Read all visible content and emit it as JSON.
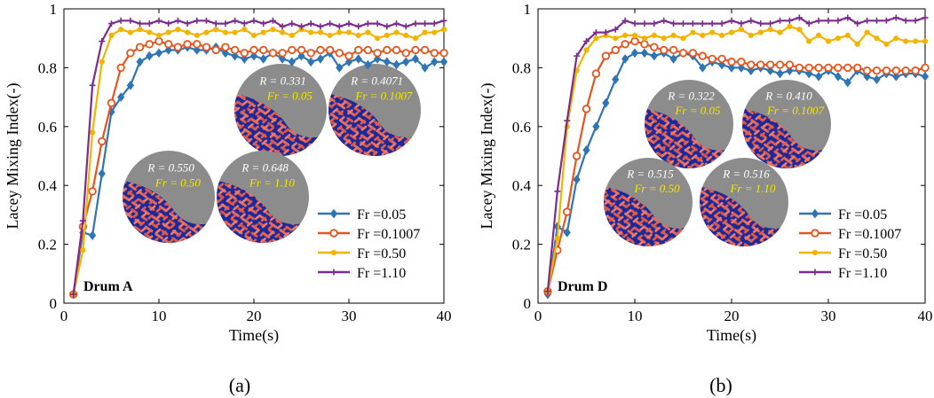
{
  "figure": {
    "panel_labels": [
      "(a)",
      "(b)"
    ]
  },
  "chart_data": [
    {
      "type": "line",
      "panel_label": "(a)",
      "annotation": "Drum A",
      "xlabel": "Time(s)",
      "ylabel": "Lacey Mixing Index(-)",
      "xlim": [
        0,
        40
      ],
      "ylim": [
        0,
        1
      ],
      "xticks": [
        0,
        10,
        20,
        30,
        40
      ],
      "yticks": [
        0,
        0.2,
        0.4,
        0.6,
        0.8,
        1
      ],
      "ytick_labels": [
        "0",
        "0.2",
        "0.4",
        "0.6",
        "0.8",
        "1"
      ],
      "legend_position": "bottom-right",
      "series": [
        {
          "name": "Fr =0.05",
          "color": "#2f75b6",
          "marker": "diamond",
          "x": [
            1,
            2,
            3,
            4,
            5,
            6,
            7,
            8,
            9,
            10,
            11,
            12,
            13,
            14,
            15,
            16,
            17,
            18,
            19,
            20,
            21,
            22,
            23,
            24,
            25,
            26,
            27,
            28,
            29,
            30,
            31,
            32,
            33,
            34,
            35,
            36,
            37,
            38,
            39,
            40
          ],
          "values": [
            0.03,
            0.24,
            0.23,
            0.44,
            0.65,
            0.7,
            0.74,
            0.82,
            0.84,
            0.85,
            0.86,
            0.86,
            0.87,
            0.86,
            0.86,
            0.87,
            0.85,
            0.84,
            0.83,
            0.84,
            0.83,
            0.85,
            0.83,
            0.82,
            0.84,
            0.82,
            0.83,
            0.85,
            0.8,
            0.82,
            0.83,
            0.81,
            0.83,
            0.82,
            0.81,
            0.82,
            0.83,
            0.8,
            0.82,
            0.82
          ]
        },
        {
          "name": "Fr =0.1007",
          "color": "#e8541c",
          "marker": "circle",
          "x": [
            1,
            2,
            3,
            4,
            5,
            6,
            7,
            8,
            9,
            10,
            11,
            12,
            13,
            14,
            15,
            16,
            17,
            18,
            19,
            20,
            21,
            22,
            23,
            24,
            25,
            26,
            27,
            28,
            29,
            30,
            31,
            32,
            33,
            34,
            35,
            36,
            37,
            38,
            39,
            40
          ],
          "values": [
            0.03,
            0.26,
            0.38,
            0.55,
            0.68,
            0.8,
            0.85,
            0.87,
            0.88,
            0.89,
            0.88,
            0.87,
            0.88,
            0.88,
            0.87,
            0.86,
            0.87,
            0.86,
            0.85,
            0.86,
            0.86,
            0.85,
            0.85,
            0.86,
            0.86,
            0.85,
            0.86,
            0.86,
            0.85,
            0.84,
            0.86,
            0.86,
            0.85,
            0.86,
            0.86,
            0.85,
            0.86,
            0.86,
            0.85,
            0.85
          ]
        },
        {
          "name": "Fr =0.50",
          "color": "#f2b400",
          "marker": "circle-small",
          "x": [
            1,
            2,
            3,
            4,
            5,
            6,
            7,
            8,
            9,
            10,
            11,
            12,
            13,
            14,
            15,
            16,
            17,
            18,
            19,
            20,
            21,
            22,
            23,
            24,
            25,
            26,
            27,
            28,
            29,
            30,
            31,
            32,
            33,
            34,
            35,
            36,
            37,
            38,
            39,
            40
          ],
          "values": [
            0.03,
            0.18,
            0.58,
            0.82,
            0.91,
            0.93,
            0.92,
            0.93,
            0.92,
            0.91,
            0.92,
            0.93,
            0.92,
            0.91,
            0.92,
            0.93,
            0.92,
            0.92,
            0.93,
            0.91,
            0.92,
            0.93,
            0.92,
            0.91,
            0.93,
            0.92,
            0.92,
            0.91,
            0.92,
            0.92,
            0.91,
            0.92,
            0.9,
            0.91,
            0.92,
            0.91,
            0.9,
            0.92,
            0.92,
            0.93
          ]
        },
        {
          "name": "Fr =1.10",
          "color": "#7b2d8e",
          "marker": "plus",
          "x": [
            1,
            2,
            3,
            4,
            5,
            6,
            7,
            8,
            9,
            10,
            11,
            12,
            13,
            14,
            15,
            16,
            17,
            18,
            19,
            20,
            21,
            22,
            23,
            24,
            25,
            26,
            27,
            28,
            29,
            30,
            31,
            32,
            33,
            34,
            35,
            36,
            37,
            38,
            39,
            40
          ],
          "values": [
            0.03,
            0.28,
            0.74,
            0.89,
            0.95,
            0.96,
            0.96,
            0.95,
            0.95,
            0.96,
            0.95,
            0.96,
            0.95,
            0.96,
            0.96,
            0.95,
            0.95,
            0.96,
            0.95,
            0.96,
            0.95,
            0.96,
            0.94,
            0.95,
            0.94,
            0.95,
            0.94,
            0.95,
            0.94,
            0.95,
            0.94,
            0.95,
            0.95,
            0.94,
            0.95,
            0.94,
            0.95,
            0.95,
            0.95,
            0.96
          ]
        }
      ],
      "insets": [
        {
          "r_label": "R = 0.331",
          "fr_label": "Fr = 0.05"
        },
        {
          "r_label": "R = 0.4071",
          "fr_label": "Fr = 0.1007"
        },
        {
          "r_label": "R = 0.550",
          "fr_label": "Fr = 0.50"
        },
        {
          "r_label": "R = 0.648",
          "fr_label": "Fr = 1.10"
        }
      ]
    },
    {
      "type": "line",
      "panel_label": "(b)",
      "annotation": "Drum D",
      "xlabel": "Time(s)",
      "ylabel": "Lacey Mixing Index(-)",
      "xlim": [
        0,
        40
      ],
      "ylim": [
        0,
        1
      ],
      "xticks": [
        0,
        10,
        20,
        30,
        40
      ],
      "yticks": [
        0,
        0.2,
        0.4,
        0.6,
        0.8,
        1
      ],
      "ytick_labels": [
        "0",
        "0.2",
        "0.4",
        "0.6",
        "0.8",
        "1"
      ],
      "legend_position": "bottom-right",
      "series": [
        {
          "name": "Fr =0.05",
          "color": "#2f75b6",
          "marker": "diamond",
          "x": [
            1,
            2,
            3,
            4,
            5,
            6,
            7,
            8,
            9,
            10,
            11,
            12,
            13,
            14,
            15,
            16,
            17,
            18,
            19,
            20,
            21,
            22,
            23,
            24,
            25,
            26,
            27,
            28,
            29,
            30,
            31,
            32,
            33,
            34,
            35,
            36,
            37,
            38,
            39,
            40
          ],
          "values": [
            0.03,
            0.26,
            0.24,
            0.42,
            0.52,
            0.6,
            0.68,
            0.76,
            0.83,
            0.85,
            0.85,
            0.84,
            0.85,
            0.83,
            0.85,
            0.84,
            0.8,
            0.82,
            0.81,
            0.8,
            0.8,
            0.79,
            0.8,
            0.79,
            0.78,
            0.79,
            0.79,
            0.78,
            0.77,
            0.79,
            0.77,
            0.75,
            0.79,
            0.77,
            0.76,
            0.78,
            0.77,
            0.78,
            0.78,
            0.77
          ]
        },
        {
          "name": "Fr =0.1007",
          "color": "#e8541c",
          "marker": "circle",
          "x": [
            1,
            2,
            3,
            4,
            5,
            6,
            7,
            8,
            9,
            10,
            11,
            12,
            13,
            14,
            15,
            16,
            17,
            18,
            19,
            20,
            21,
            22,
            23,
            24,
            25,
            26,
            27,
            28,
            29,
            30,
            31,
            32,
            33,
            34,
            35,
            36,
            37,
            38,
            39,
            40
          ],
          "values": [
            0.04,
            0.18,
            0.31,
            0.5,
            0.66,
            0.78,
            0.84,
            0.86,
            0.88,
            0.89,
            0.88,
            0.87,
            0.86,
            0.86,
            0.85,
            0.85,
            0.84,
            0.83,
            0.83,
            0.82,
            0.82,
            0.81,
            0.81,
            0.81,
            0.81,
            0.81,
            0.8,
            0.8,
            0.8,
            0.8,
            0.8,
            0.8,
            0.8,
            0.79,
            0.79,
            0.79,
            0.79,
            0.79,
            0.79,
            0.8
          ]
        },
        {
          "name": "Fr =0.50",
          "color": "#f2b400",
          "marker": "circle-small",
          "x": [
            1,
            2,
            3,
            4,
            5,
            6,
            7,
            8,
            9,
            10,
            11,
            12,
            13,
            14,
            15,
            16,
            17,
            18,
            19,
            20,
            21,
            22,
            23,
            24,
            25,
            26,
            27,
            28,
            29,
            30,
            31,
            32,
            33,
            34,
            35,
            36,
            37,
            38,
            39,
            40
          ],
          "values": [
            0.04,
            0.22,
            0.6,
            0.79,
            0.86,
            0.9,
            0.91,
            0.9,
            0.91,
            0.91,
            0.9,
            0.91,
            0.9,
            0.91,
            0.9,
            0.92,
            0.91,
            0.92,
            0.91,
            0.92,
            0.93,
            0.91,
            0.92,
            0.93,
            0.92,
            0.94,
            0.93,
            0.89,
            0.91,
            0.89,
            0.9,
            0.91,
            0.88,
            0.92,
            0.9,
            0.88,
            0.9,
            0.89,
            0.89,
            0.89
          ]
        },
        {
          "name": "Fr =1.10",
          "color": "#7b2d8e",
          "marker": "plus",
          "x": [
            1,
            2,
            3,
            4,
            5,
            6,
            7,
            8,
            9,
            10,
            11,
            12,
            13,
            14,
            15,
            16,
            17,
            18,
            19,
            20,
            21,
            22,
            23,
            24,
            25,
            26,
            27,
            28,
            29,
            30,
            31,
            32,
            33,
            34,
            35,
            36,
            37,
            38,
            39,
            40
          ],
          "values": [
            0.04,
            0.38,
            0.62,
            0.84,
            0.89,
            0.92,
            0.92,
            0.93,
            0.96,
            0.95,
            0.95,
            0.95,
            0.96,
            0.95,
            0.95,
            0.95,
            0.95,
            0.95,
            0.95,
            0.96,
            0.95,
            0.96,
            0.95,
            0.95,
            0.96,
            0.96,
            0.97,
            0.95,
            0.96,
            0.96,
            0.96,
            0.97,
            0.95,
            0.96,
            0.96,
            0.96,
            0.97,
            0.96,
            0.96,
            0.97
          ]
        }
      ],
      "insets": [
        {
          "r_label": "R = 0.322",
          "fr_label": "Fr = 0.05"
        },
        {
          "r_label": "R = 0.410",
          "fr_label": "Fr = 0.1007"
        },
        {
          "r_label": "R = 0.515",
          "fr_label": "Fr = 0.50"
        },
        {
          "r_label": "R = 0.516",
          "fr_label": "Fr = 1.10"
        }
      ]
    }
  ]
}
